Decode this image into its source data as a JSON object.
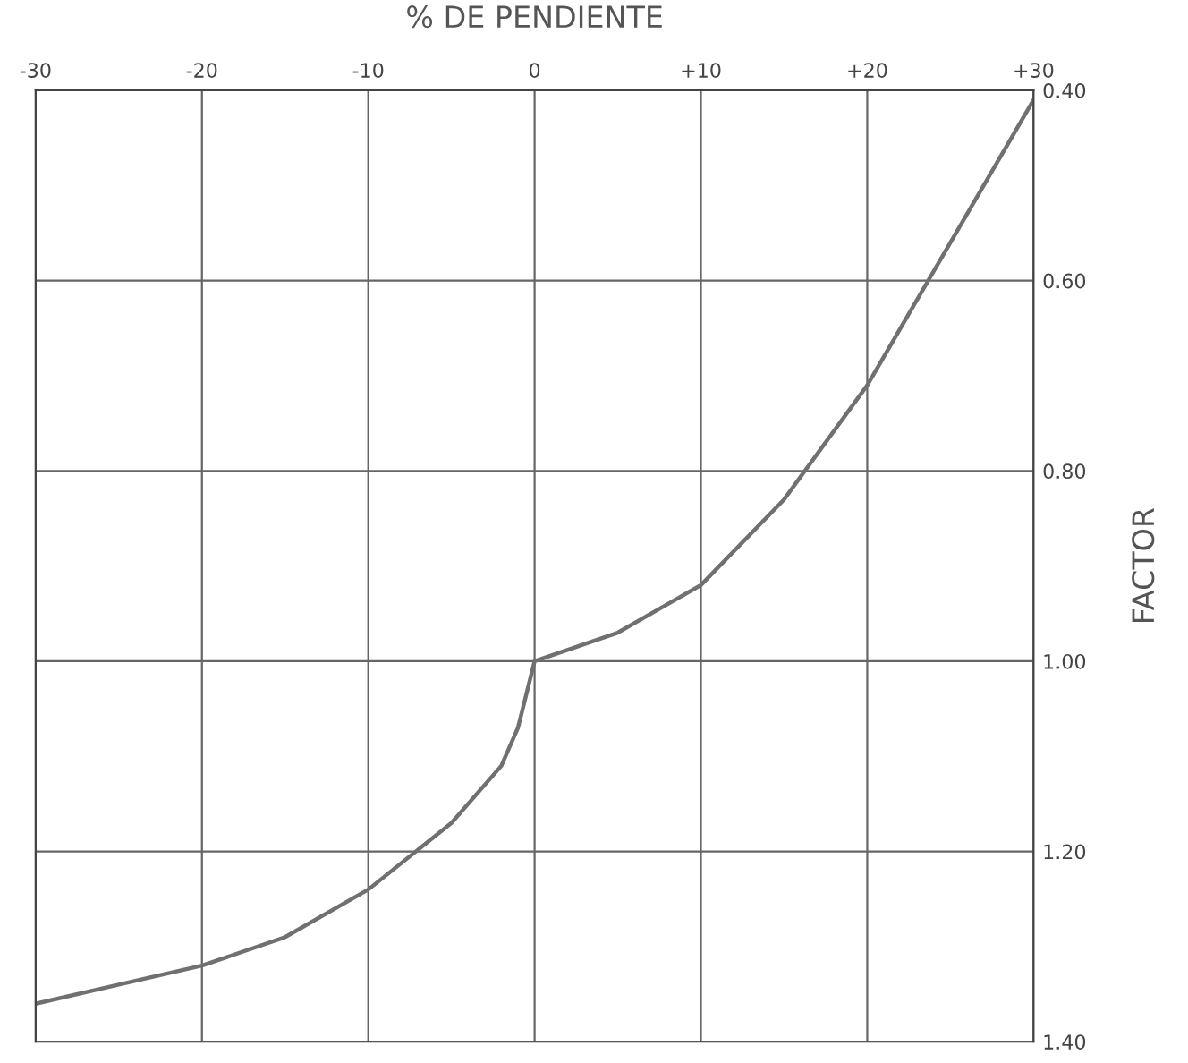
{
  "chart_data": {
    "type": "line",
    "xlabel": "% DE PENDIENTE",
    "ylabel": "FACTOR",
    "x": [
      -30,
      -25,
      -20,
      -15,
      -10,
      -5,
      -2,
      -1,
      0,
      5,
      10,
      15,
      20,
      25,
      30
    ],
    "series": [
      {
        "color": "#707070",
        "values": [
          1.36,
          1.34,
          1.32,
          1.29,
          1.24,
          1.17,
          1.11,
          1.07,
          1.0,
          0.97,
          0.92,
          0.83,
          0.71,
          0.56,
          0.41
        ]
      }
    ],
    "xlim": [
      -30,
      30
    ],
    "ylim": [
      1.4,
      0.4
    ],
    "xticks": [
      -30,
      -20,
      -10,
      0,
      {
        "value": 10,
        "label": "+10"
      },
      {
        "value": 20,
        "label": "+20"
      },
      {
        "value": 30,
        "label": "+30"
      }
    ],
    "yticks": [
      {
        "value": 0.4,
        "label": "0.40"
      },
      {
        "value": 0.6,
        "label": "0.60"
      },
      {
        "value": 0.8,
        "label": "0.80"
      },
      {
        "value": 1.0,
        "label": "1.00"
      },
      {
        "value": 1.2,
        "label": "1.20"
      },
      {
        "value": 1.4,
        "label": "1.40"
      }
    ],
    "grid": true,
    "marker": "none",
    "line_style": "solid"
  }
}
